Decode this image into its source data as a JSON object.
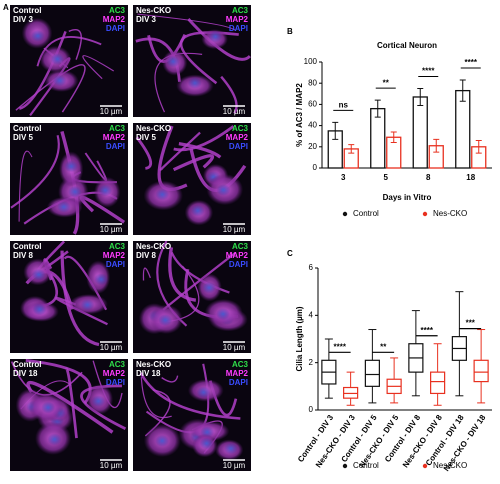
{
  "panel_labels": [
    "A",
    "B",
    "C"
  ],
  "images": [
    {
      "condition": "Control",
      "div": "DIV 3",
      "markers": [
        "AC3",
        "MAP2",
        "DAPI"
      ],
      "scale_bar": "10 µm"
    },
    {
      "condition": "Nes-CKO",
      "div": "DIV 3",
      "markers": [
        "AC3",
        "MAP2",
        "DAPI"
      ],
      "scale_bar": "10 µm"
    },
    {
      "condition": "Control",
      "div": "DIV 5",
      "markers": [
        "AC3",
        "MAP2",
        "DAPI"
      ],
      "scale_bar": "10 µm"
    },
    {
      "condition": "Nes-CKO",
      "div": "DIV 5",
      "markers": [
        "AC3",
        "MAP2",
        "DAPI"
      ],
      "scale_bar": "10 µm"
    },
    {
      "condition": "Control",
      "div": "DIV 8",
      "markers": [
        "AC3",
        "MAP2",
        "DAPI"
      ],
      "scale_bar": "10 µm"
    },
    {
      "condition": "Nes-CKO",
      "div": "DIV 8",
      "markers": [
        "AC3",
        "MAP2",
        "DAPI"
      ],
      "scale_bar": "10 µm"
    },
    {
      "condition": "Control",
      "div": "DIV 18",
      "markers": [
        "AC3",
        "MAP2",
        "DAPI"
      ],
      "scale_bar": "10 µm"
    },
    {
      "condition": "Nes-CKO",
      "div": "DIV 18",
      "markers": [
        "AC3",
        "MAP2",
        "DAPI"
      ],
      "scale_bar": "10 µm"
    }
  ],
  "chart_data": [
    {
      "type": "bar",
      "title": "Cortical Neuron",
      "y_label": "% of AC3 / MAP2",
      "x_label": "Days in Vitro",
      "categories": [
        "3",
        "5",
        "8",
        "18"
      ],
      "series": [
        {
          "name": "Control",
          "color": "#111111",
          "values": [
            35,
            56,
            67,
            73
          ],
          "errors": [
            8,
            8,
            8,
            10
          ]
        },
        {
          "name": "Nes-CKO",
          "color": "#e8301f",
          "values": [
            18,
            29,
            21,
            20
          ],
          "errors": [
            4,
            5,
            6,
            6
          ]
        }
      ],
      "significance": [
        "ns",
        "**",
        "****",
        "****"
      ],
      "ylim": [
        0,
        100
      ],
      "yticks": [
        0,
        20,
        40,
        60,
        80,
        100
      ],
      "legend": "bottom"
    },
    {
      "type": "box",
      "y_label": "Cilia Length (µm)",
      "categories": [
        "Control - DIV 3",
        "Nes-CKO - DIV 3",
        "Control - DIV 5",
        "Nes-CKO - DIV 5",
        "Control - DIV 8",
        "Nes-CKO - DIV 8",
        "Control - DIV 18",
        "Nes-CKO - DIV 18"
      ],
      "series": [
        {
          "name": "Control",
          "color": "#111111",
          "values": [
            {
              "min": 0.5,
              "q1": 1.1,
              "median": 1.6,
              "q3": 2.1,
              "max": 3.0
            },
            null,
            {
              "min": 0.3,
              "q1": 1.0,
              "median": 1.5,
              "q3": 2.1,
              "max": 3.4
            },
            null,
            {
              "min": 0.6,
              "q1": 1.6,
              "median": 2.2,
              "q3": 2.8,
              "max": 4.2
            },
            null,
            {
              "min": 0.6,
              "q1": 2.1,
              "median": 2.6,
              "q3": 3.1,
              "max": 5.0
            },
            null
          ]
        },
        {
          "name": "Nes-CKO",
          "color": "#e8301f",
          "values": [
            null,
            {
              "min": 0.2,
              "q1": 0.5,
              "median": 0.7,
              "q3": 0.95,
              "max": 1.6
            },
            null,
            {
              "min": 0.3,
              "q1": 0.7,
              "median": 1.0,
              "q3": 1.3,
              "max": 2.2
            },
            null,
            {
              "min": 0.2,
              "q1": 0.7,
              "median": 1.2,
              "q3": 1.6,
              "max": 2.8
            },
            null,
            {
              "min": 0.3,
              "q1": 1.2,
              "median": 1.6,
              "q3": 2.1,
              "max": 3.4
            }
          ]
        }
      ],
      "significance": [
        "****",
        "**",
        "****",
        "***"
      ],
      "ylim": [
        0,
        6
      ],
      "yticks": [
        0,
        2,
        4,
        6
      ],
      "legend": "bottom"
    }
  ]
}
